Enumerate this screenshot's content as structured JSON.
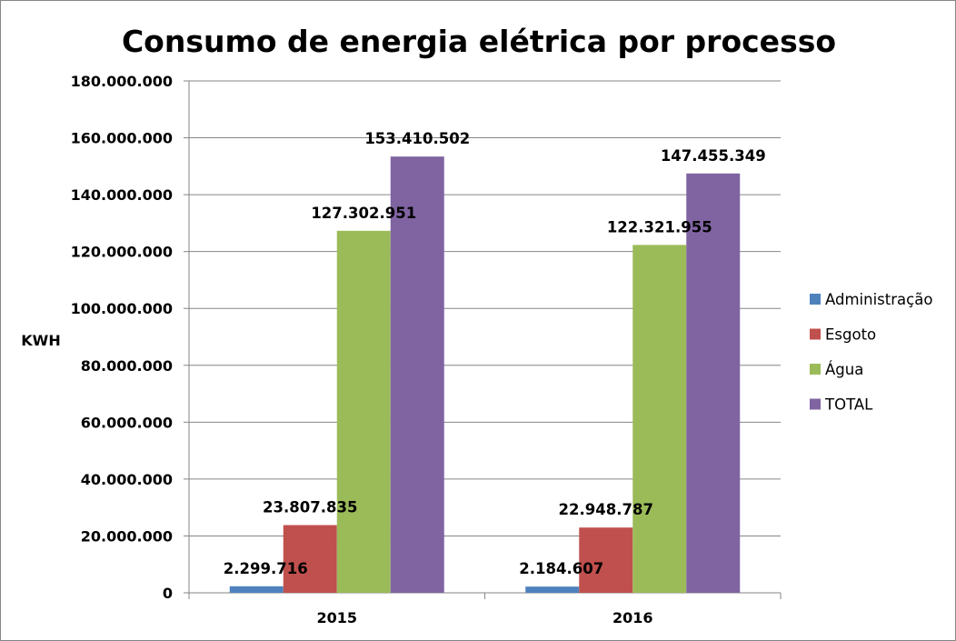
{
  "chart_data": {
    "type": "bar",
    "title": "Consumo de energia elétrica por processo",
    "ylabel": "KWH",
    "xlabel": "",
    "categories": [
      "2015",
      "2016"
    ],
    "ylim": [
      0,
      180000000
    ],
    "yticks": [
      0,
      20000000,
      40000000,
      60000000,
      80000000,
      100000000,
      120000000,
      140000000,
      160000000,
      180000000
    ],
    "ytick_labels": [
      "0",
      "20.000.000",
      "40.000.000",
      "60.000.000",
      "80.000.000",
      "100.000.000",
      "120.000.000",
      "140.000.000",
      "160.000.000",
      "180.000.000"
    ],
    "grid": true,
    "legend_position": "right",
    "series": [
      {
        "name": "Administração",
        "color": "#4F81BD",
        "values": [
          2299716,
          2184607
        ],
        "labels": [
          "2.299.716",
          "2.184.607"
        ]
      },
      {
        "name": "Esgoto",
        "color": "#C0504D",
        "values": [
          23807835,
          22948787
        ],
        "labels": [
          "23.807.835",
          "22.948.787"
        ]
      },
      {
        "name": "Água",
        "color": "#9BBB59",
        "values": [
          127302951,
          122321955
        ],
        "labels": [
          "127.302.951",
          "122.321.955"
        ]
      },
      {
        "name": "TOTAL",
        "color": "#8064A2",
        "values": [
          153410502,
          147455349
        ],
        "labels": [
          "153.410.502",
          "147.455.349"
        ]
      }
    ]
  }
}
